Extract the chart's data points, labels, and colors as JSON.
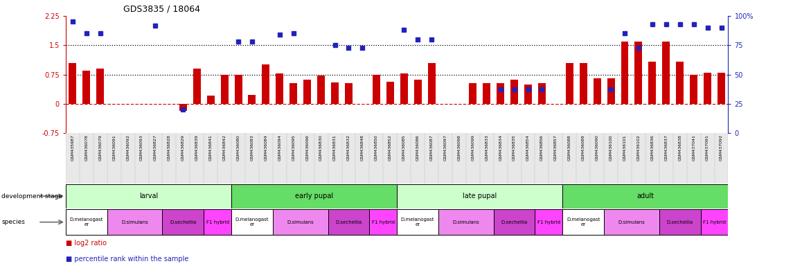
{
  "title": "GDS3835 / 18064",
  "gsm_labels": [
    "GSM435987",
    "GSM436078",
    "GSM436079",
    "GSM436091",
    "GSM436092",
    "GSM436093",
    "GSM436827",
    "GSM436828",
    "GSM436829",
    "GSM436839",
    "GSM436841",
    "GSM436842",
    "GSM436080",
    "GSM436083",
    "GSM436084",
    "GSM436094",
    "GSM436095",
    "GSM436096",
    "GSM436830",
    "GSM436831",
    "GSM436832",
    "GSM436848",
    "GSM436850",
    "GSM436852",
    "GSM436085",
    "GSM436086",
    "GSM436087",
    "GSM436097",
    "GSM436098",
    "GSM436099",
    "GSM436833",
    "GSM436834",
    "GSM436835",
    "GSM436854",
    "GSM436856",
    "GSM436857",
    "GSM436088",
    "GSM436089",
    "GSM436090",
    "GSM436100",
    "GSM436101",
    "GSM436102",
    "GSM436836",
    "GSM436837",
    "GSM436838",
    "GSM437041",
    "GSM437091",
    "GSM437092"
  ],
  "log2_ratio": [
    1.05,
    0.85,
    0.9,
    0.0,
    0.0,
    0.0,
    0.0,
    0.0,
    -0.18,
    0.9,
    0.2,
    0.75,
    0.75,
    0.22,
    1.0,
    0.78,
    0.52,
    0.62,
    0.72,
    0.55,
    0.52,
    0.0,
    0.75,
    0.57,
    0.78,
    0.62,
    1.05,
    0.0,
    0.0,
    0.52,
    0.52,
    0.52,
    0.62,
    0.5,
    0.52,
    0.0,
    1.05,
    1.05,
    0.65,
    0.65,
    1.6,
    1.6,
    1.08,
    1.6,
    1.08,
    0.75,
    0.8,
    0.8
  ],
  "percentile_raw": [
    95,
    85,
    85,
    0,
    0,
    0,
    92,
    0,
    20,
    0,
    0,
    0,
    78,
    78,
    0,
    84,
    85,
    0,
    0,
    75,
    73,
    73,
    0,
    0,
    88,
    80,
    80,
    0,
    0,
    0,
    0,
    37,
    37,
    37,
    37,
    0,
    0,
    0,
    0,
    37,
    85,
    73,
    93,
    93,
    93,
    93,
    90,
    90
  ],
  "bar_color": "#cc0000",
  "dot_color": "#2222bb",
  "dotted_line_values_log2": [
    1.5,
    0.75
  ],
  "ylim_log2": [
    -0.75,
    2.25
  ],
  "yticks_log2": [
    -0.75,
    0.0,
    0.75,
    1.5,
    2.25
  ],
  "yticks_right": [
    0,
    25,
    50,
    75,
    100
  ],
  "dev_stages": [
    {
      "name": "larval",
      "start": 0,
      "end": 11,
      "color": "#ccffcc"
    },
    {
      "name": "early pupal",
      "start": 12,
      "end": 23,
      "color": "#66dd66"
    },
    {
      "name": "late pupal",
      "start": 24,
      "end": 35,
      "color": "#ccffcc"
    },
    {
      "name": "adult",
      "start": 36,
      "end": 47,
      "color": "#66dd66"
    }
  ],
  "species_groups": [
    {
      "name": "D.melanogast\ner",
      "start": 0,
      "end": 2,
      "color": "#ffffff"
    },
    {
      "name": "D.simulans",
      "start": 3,
      "end": 6,
      "color": "#ee88ee"
    },
    {
      "name": "D.sechellia",
      "start": 7,
      "end": 9,
      "color": "#cc44cc"
    },
    {
      "name": "F1 hybrid",
      "start": 10,
      "end": 11,
      "color": "#ff44ff"
    },
    {
      "name": "D.melanogast\ner",
      "start": 12,
      "end": 14,
      "color": "#ffffff"
    },
    {
      "name": "D.simulans",
      "start": 15,
      "end": 18,
      "color": "#ee88ee"
    },
    {
      "name": "D.sechellia",
      "start": 19,
      "end": 21,
      "color": "#cc44cc"
    },
    {
      "name": "F1 hybrid",
      "start": 22,
      "end": 23,
      "color": "#ff44ff"
    },
    {
      "name": "D.melanogast\ner",
      "start": 24,
      "end": 26,
      "color": "#ffffff"
    },
    {
      "name": "D.simulans",
      "start": 27,
      "end": 30,
      "color": "#ee88ee"
    },
    {
      "name": "D.sechellia",
      "start": 31,
      "end": 33,
      "color": "#cc44cc"
    },
    {
      "name": "F1 hybrid",
      "start": 34,
      "end": 35,
      "color": "#ff44ff"
    },
    {
      "name": "D.melanogast\ner",
      "start": 36,
      "end": 38,
      "color": "#ffffff"
    },
    {
      "name": "D.simulans",
      "start": 39,
      "end": 42,
      "color": "#ee88ee"
    },
    {
      "name": "D.sechellia",
      "start": 43,
      "end": 45,
      "color": "#cc44cc"
    },
    {
      "name": "F1 hybrid",
      "start": 46,
      "end": 47,
      "color": "#ff44ff"
    }
  ]
}
